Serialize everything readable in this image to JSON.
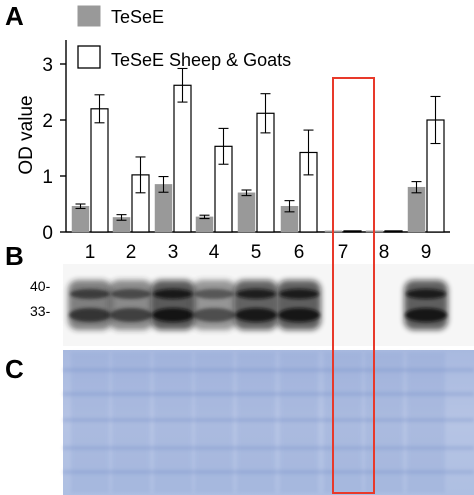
{
  "panels": {
    "a": "A",
    "b": "B",
    "c": "C"
  },
  "chart_data": {
    "type": "bar",
    "categories": [
      "1",
      "2",
      "3",
      "4",
      "5",
      "6",
      "7",
      "8",
      "9"
    ],
    "ylabel": "OD value",
    "xlabel": "",
    "ylim": [
      0,
      3.5
    ],
    "yticks": [
      "0",
      "1",
      "2",
      "3"
    ],
    "legend_position": "top-left",
    "series": [
      {
        "name": "TeSeE",
        "color": "#999999",
        "values": [
          0.46,
          0.26,
          0.85,
          0.27,
          0.7,
          0.46,
          0.02,
          0.02,
          0.8
        ],
        "errors": [
          0.04,
          0.05,
          0.14,
          0.03,
          0.05,
          0.1,
          0.0,
          0.0,
          0.1
        ]
      },
      {
        "name": "TeSeE Sheep & Goats",
        "color": "#ffffff",
        "values": [
          2.2,
          1.02,
          2.62,
          1.53,
          2.12,
          1.42,
          0.02,
          0.02,
          2.0
        ],
        "errors": [
          0.25,
          0.32,
          0.3,
          0.32,
          0.35,
          0.4,
          0.0,
          0.0,
          0.42
        ]
      }
    ],
    "highlight_lane": "7",
    "highlight_color": "#e8392a"
  },
  "blot": {
    "markers": [
      "40-",
      "33-"
    ],
    "band_intensity": [
      0.55,
      0.45,
      0.9,
      0.35,
      0.8,
      0.85,
      0.0,
      0.0,
      0.85
    ]
  }
}
